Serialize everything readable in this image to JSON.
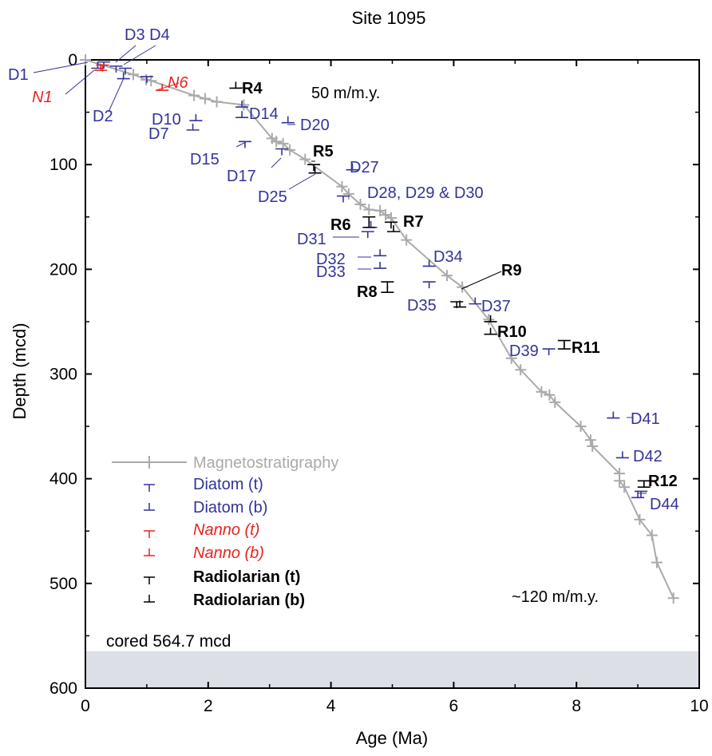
{
  "chart_data": {
    "type": "scatter",
    "title": "Site 1095",
    "xlabel": "Age (Ma)",
    "ylabel": "Depth (mcd)",
    "xlim": [
      0,
      10
    ],
    "ylim": [
      600,
      0
    ],
    "x_ticks": [
      "0",
      "2",
      "4",
      "6",
      "8",
      "10"
    ],
    "y_ticks": [
      "0",
      "100",
      "200",
      "300",
      "400",
      "500",
      "600"
    ],
    "colors": {
      "magneto": "#aaaaaa",
      "diatom": "#333399",
      "nanno": "#e8231f",
      "radiolarian": "#000000",
      "cored_band": "#dcdfe6"
    },
    "magneto": {
      "name": "Magnetostratigraphy",
      "points": [
        [
          0,
          0
        ],
        [
          0.78,
          14
        ],
        [
          0.99,
          19
        ],
        [
          1.07,
          20
        ],
        [
          1.77,
          34
        ],
        [
          1.95,
          37
        ],
        [
          2.14,
          40
        ],
        [
          2.58,
          43
        ],
        [
          3.04,
          75
        ],
        [
          3.11,
          78
        ],
        [
          3.22,
          80
        ],
        [
          3.33,
          86
        ],
        [
          3.58,
          95
        ],
        [
          4.18,
          121
        ],
        [
          4.29,
          128
        ],
        [
          4.48,
          138
        ],
        [
          4.62,
          143
        ],
        [
          4.8,
          144
        ],
        [
          4.89,
          148
        ],
        [
          4.98,
          151
        ],
        [
          5.23,
          172
        ],
        [
          5.89,
          206
        ],
        [
          6.14,
          217
        ],
        [
          6.57,
          248
        ],
        [
          6.94,
          285
        ],
        [
          7.09,
          296
        ],
        [
          7.43,
          317
        ],
        [
          7.56,
          320
        ],
        [
          7.65,
          327
        ],
        [
          8.07,
          350
        ],
        [
          8.23,
          363
        ],
        [
          8.26,
          369
        ],
        [
          8.7,
          395
        ],
        [
          8.7,
          402
        ],
        [
          8.78,
          408
        ],
        [
          9.03,
          439
        ],
        [
          9.23,
          454
        ],
        [
          9.31,
          480
        ],
        [
          9.58,
          514
        ]
      ]
    },
    "diatom_t": {
      "name": "Diatom (t)",
      "points": [
        [
          0.3,
          2
        ],
        [
          0.5,
          6
        ],
        [
          0.65,
          8
        ],
        [
          1.0,
          16
        ],
        [
          2.6,
          78
        ],
        [
          3.2,
          85
        ],
        [
          4.2,
          130
        ],
        [
          4.6,
          164
        ],
        [
          5.6,
          212
        ],
        [
          7.55,
          276
        ],
        [
          9.05,
          412
        ]
      ]
    },
    "diatom_b": {
      "name": "Diatom (b)",
      "points": [
        [
          0.2,
          8
        ],
        [
          0.62,
          18
        ],
        [
          1.8,
          58
        ],
        [
          1.75,
          67
        ],
        [
          2.55,
          45
        ],
        [
          2.55,
          55
        ],
        [
          3.3,
          60
        ],
        [
          4.35,
          105
        ],
        [
          4.65,
          160
        ],
        [
          4.8,
          187
        ],
        [
          4.8,
          199
        ],
        [
          5.6,
          197
        ],
        [
          6.35,
          233
        ],
        [
          8.6,
          342
        ],
        [
          8.75,
          380
        ],
        [
          9.0,
          418
        ]
      ]
    },
    "nanno_t": {
      "name": "Nanno (t)",
      "points": [
        [
          0.28,
          5
        ]
      ]
    },
    "nanno_b": {
      "name": "Nanno (b)",
      "points": [
        [
          0.25,
          10
        ],
        [
          1.25,
          29
        ]
      ]
    },
    "rad_t": {
      "name": "Radiolarian (t)",
      "points": [
        [
          3.72,
          100
        ],
        [
          4.62,
          150
        ],
        [
          4.98,
          155
        ],
        [
          4.92,
          212
        ],
        [
          6.05,
          231
        ],
        [
          7.8,
          268
        ],
        [
          9.1,
          402
        ]
      ]
    },
    "rad_b": {
      "name": "Radiolarian (b)",
      "points": [
        [
          2.45,
          27
        ],
        [
          3.74,
          108
        ],
        [
          4.62,
          160
        ],
        [
          5.02,
          164
        ],
        [
          4.92,
          222
        ],
        [
          6.1,
          236
        ],
        [
          6.6,
          250
        ],
        [
          6.6,
          262
        ],
        [
          7.8,
          276
        ],
        [
          9.1,
          408
        ]
      ]
    },
    "label_texts": {
      "D1": "D1",
      "D2": "D2",
      "D3D4": "D3 D4",
      "N1": "N1",
      "N6": "N6",
      "D7": "D7",
      "D10": "D10",
      "D14": "D14",
      "D15": "D15",
      "D17": "D17",
      "D20": "D20",
      "D25": "D25",
      "D27": "D27",
      "D28": "D28, D29 & D30",
      "D31": "D31",
      "D32": "D32",
      "D33": "D33",
      "D34": "D34",
      "D35": "D35",
      "D37": "D37",
      "D39": "D39",
      "D41": "D41",
      "D42": "D42",
      "D44": "D44",
      "R4": "R4",
      "R5": "R5",
      "R6": "R6",
      "R7": "R7",
      "R8": "R8",
      "R9": "R9",
      "R10": "R10",
      "R11": "R11",
      "R12": "R12"
    },
    "rate_labels": {
      "upper": "50 m/m.y.",
      "lower": "~120 m/m.y."
    },
    "cored": {
      "text": "cored  564.7 mcd",
      "depth": 564.7
    },
    "legend_position": "lower-left"
  }
}
